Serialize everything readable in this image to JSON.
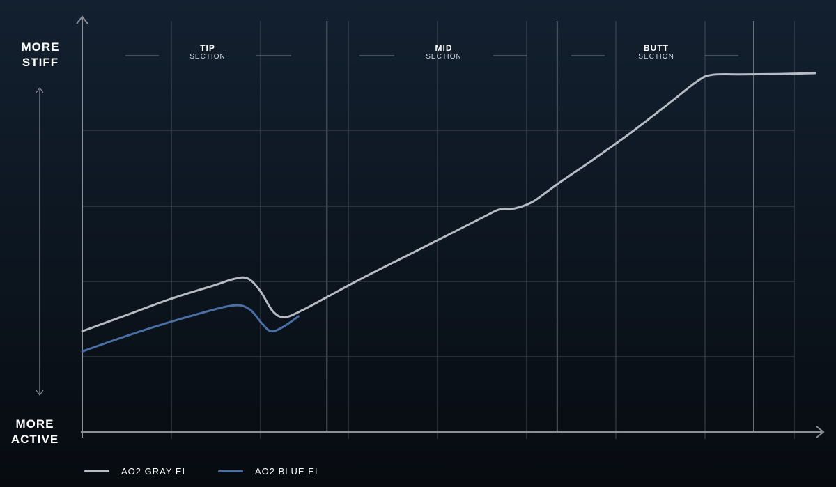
{
  "y_axis": {
    "top_line1": "MORE",
    "top_line2": "STIFF",
    "bottom_line1": "MORE",
    "bottom_line2": "ACTIVE"
  },
  "sections": [
    {
      "name": "TIP",
      "sub": "SECTION"
    },
    {
      "name": "MID",
      "sub": "SECTION"
    },
    {
      "name": "BUTT",
      "sub": "SECTION"
    }
  ],
  "legend": [
    {
      "label": "AO2 GRAY EI",
      "color": "#b7bcc4"
    },
    {
      "label": "AO2 BLUE EI",
      "color": "#4a6fa5"
    }
  ],
  "chart_data": {
    "type": "line",
    "title": "",
    "xlabel": "",
    "ylabel": "",
    "xlim": [
      0,
      100
    ],
    "ylim": [
      0,
      100
    ],
    "grid": true,
    "section_bounds": [
      0,
      33.4,
      64.8,
      100
    ],
    "legend_position": "bottom-left",
    "series": [
      {
        "name": "AO2 GRAY EI",
        "color": "#b7bcc4",
        "points": [
          [
            0,
            25
          ],
          [
            6,
            29
          ],
          [
            12,
            33
          ],
          [
            18,
            36.4
          ],
          [
            20.7,
            38
          ],
          [
            22.6,
            38.1
          ],
          [
            24.3,
            35
          ],
          [
            26,
            30
          ],
          [
            27.6,
            28.5
          ],
          [
            30,
            30.2
          ],
          [
            33.4,
            33.5
          ],
          [
            38,
            38
          ],
          [
            44,
            43.5
          ],
          [
            50,
            49
          ],
          [
            55,
            53.6
          ],
          [
            57,
            55.3
          ],
          [
            59,
            55.5
          ],
          [
            61.5,
            57.2
          ],
          [
            64.8,
            61.5
          ],
          [
            70,
            68
          ],
          [
            75,
            74.5
          ],
          [
            80,
            81.5
          ],
          [
            84,
            87.2
          ],
          [
            86,
            88.7
          ],
          [
            90,
            88.8
          ],
          [
            95,
            88.9
          ],
          [
            100,
            89.1
          ]
        ]
      },
      {
        "name": "AO2 BLUE EI",
        "color": "#4a6fa5",
        "points": [
          [
            0,
            20
          ],
          [
            5,
            23.2
          ],
          [
            10,
            26.2
          ],
          [
            15,
            28.9
          ],
          [
            20.5,
            31.4
          ],
          [
            22.8,
            30.5
          ],
          [
            24.5,
            27
          ],
          [
            25.8,
            25
          ],
          [
            27.6,
            26.3
          ],
          [
            29.5,
            28.7
          ]
        ]
      }
    ]
  }
}
